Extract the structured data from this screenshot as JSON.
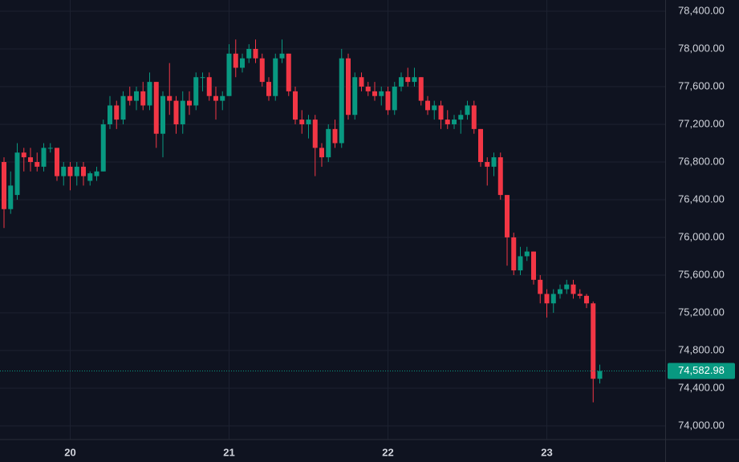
{
  "chart_data": {
    "type": "candlestick",
    "categories": [
      null,
      null,
      null,
      null,
      null,
      null,
      null,
      null,
      null,
      null,
      "20",
      null,
      null,
      null,
      null,
      null,
      null,
      null,
      null,
      null,
      null,
      null,
      null,
      null,
      null,
      null,
      null,
      null,
      null,
      null,
      null,
      null,
      null,
      null,
      "21",
      null,
      null,
      null,
      null,
      null,
      null,
      null,
      null,
      null,
      null,
      null,
      null,
      null,
      null,
      null,
      null,
      null,
      null,
      null,
      null,
      null,
      null,
      null,
      "22",
      null,
      null,
      null,
      null,
      null,
      null,
      null,
      null,
      null,
      null,
      null,
      null,
      null,
      null,
      null,
      null,
      null,
      null,
      null,
      null,
      null,
      null,
      null,
      "23",
      null,
      null,
      null,
      null,
      null,
      null,
      null,
      null
    ],
    "open": [
      76800,
      76300,
      76450,
      76900,
      76850,
      76800,
      76750,
      76950,
      76950,
      76650,
      76750,
      76650,
      76750,
      76600,
      76650,
      76700,
      77200,
      77400,
      77250,
      77500,
      77450,
      77550,
      77400,
      77650,
      77100,
      77500,
      77450,
      77200,
      77450,
      77400,
      77700,
      77700,
      77500,
      77450,
      77500,
      77950,
      77800,
      77900,
      78000,
      77900,
      77650,
      77500,
      77900,
      77950,
      77550,
      77250,
      77200,
      77250,
      76950,
      76850,
      77150,
      77000,
      77900,
      77300,
      77700,
      77600,
      77550,
      77500,
      77550,
      77350,
      77600,
      77700,
      77650,
      77700,
      77450,
      77350,
      77400,
      77250,
      77200,
      77250,
      77300,
      77400,
      77150,
      76800,
      76750,
      76850,
      76450,
      76000,
      75650,
      75800,
      75850,
      75550,
      75400,
      75300,
      75400,
      75450,
      75500,
      75400,
      75380,
      75300,
      74500
    ],
    "high": [
      76850,
      76700,
      77000,
      76950,
      76950,
      76900,
      77000,
      77000,
      76950,
      76800,
      76800,
      76800,
      76800,
      76700,
      76750,
      77250,
      77500,
      77450,
      77550,
      77600,
      77600,
      77650,
      77750,
      77650,
      77550,
      77850,
      77500,
      77550,
      77550,
      77750,
      77750,
      77750,
      77600,
      77550,
      78050,
      78100,
      77950,
      78050,
      78100,
      77950,
      77700,
      77950,
      78100,
      77950,
      77600,
      77350,
      77300,
      77300,
      77000,
      77200,
      77250,
      78000,
      77950,
      77750,
      77750,
      77650,
      77650,
      77600,
      77600,
      77650,
      77750,
      77800,
      77800,
      77700,
      77500,
      77450,
      77450,
      77350,
      77300,
      77350,
      77450,
      77450,
      77150,
      76850,
      76900,
      76900,
      76450,
      76050,
      75900,
      75900,
      75850,
      75600,
      75450,
      75450,
      75500,
      75550,
      75550,
      75450,
      75400,
      75320,
      74650
    ],
    "low": [
      76100,
      76250,
      76400,
      76700,
      76700,
      76700,
      76700,
      76900,
      76600,
      76550,
      76500,
      76550,
      76550,
      76550,
      76600,
      76700,
      77150,
      77150,
      77200,
      77400,
      77350,
      77350,
      77350,
      76950,
      76850,
      77300,
      77100,
      77100,
      77300,
      77350,
      77550,
      77450,
      77250,
      77350,
      77500,
      77700,
      77750,
      77850,
      77850,
      77600,
      77450,
      77450,
      77850,
      77500,
      77200,
      77100,
      77050,
      76650,
      76750,
      76800,
      76950,
      76950,
      77250,
      77250,
      77550,
      77500,
      77450,
      77400,
      77300,
      77300,
      77550,
      77600,
      77600,
      77400,
      77300,
      77250,
      77150,
      77150,
      77150,
      77100,
      77250,
      77100,
      76750,
      76550,
      76650,
      76400,
      75700,
      75600,
      75600,
      75750,
      75500,
      75300,
      75150,
      75200,
      75350,
      75400,
      75350,
      75350,
      75250,
      74250,
      74450
    ],
    "close": [
      76300,
      76550,
      76900,
      76850,
      76800,
      76750,
      76950,
      76950,
      76650,
      76750,
      76650,
      76750,
      76650,
      76680,
      76700,
      77200,
      77400,
      77250,
      77500,
      77450,
      77550,
      77400,
      77650,
      77100,
      77500,
      77450,
      77200,
      77450,
      77400,
      77700,
      77700,
      77500,
      77450,
      77500,
      77950,
      77800,
      77900,
      78000,
      77900,
      77650,
      77500,
      77900,
      77950,
      77550,
      77250,
      77200,
      77250,
      76950,
      76850,
      77150,
      77000,
      77900,
      77300,
      77700,
      77600,
      77550,
      77500,
      77550,
      77350,
      77600,
      77700,
      77650,
      77700,
      77450,
      77350,
      77400,
      77250,
      77200,
      77250,
      77300,
      77400,
      77150,
      76800,
      76750,
      76850,
      76450,
      76000,
      75650,
      75800,
      75850,
      75550,
      75400,
      75300,
      75400,
      75450,
      75500,
      75400,
      75380,
      75300,
      74500,
      74582.98
    ],
    "up_color": "#089981",
    "down_color": "#f23645",
    "ylim": [
      73855,
      78519
    ],
    "yticks": [
      {
        "value": 74000,
        "label": "74,000.00"
      },
      {
        "value": 74400,
        "label": "74,400.00"
      },
      {
        "value": 74800,
        "label": "74,800.00"
      },
      {
        "value": 75200,
        "label": "75,200.00"
      },
      {
        "value": 75600,
        "label": "75,600.00"
      },
      {
        "value": 76000,
        "label": "76,000.00"
      },
      {
        "value": 76400,
        "label": "76,400.00"
      },
      {
        "value": 76800,
        "label": "76,800.00"
      },
      {
        "value": 77200,
        "label": "77,200.00"
      },
      {
        "value": 77600,
        "label": "77,600.00"
      },
      {
        "value": 78000,
        "label": "78,000.00"
      },
      {
        "value": 78400,
        "label": "78,400.00"
      }
    ],
    "last_price": {
      "value": 74582.98,
      "label": "74,582.98"
    },
    "grid": true
  }
}
